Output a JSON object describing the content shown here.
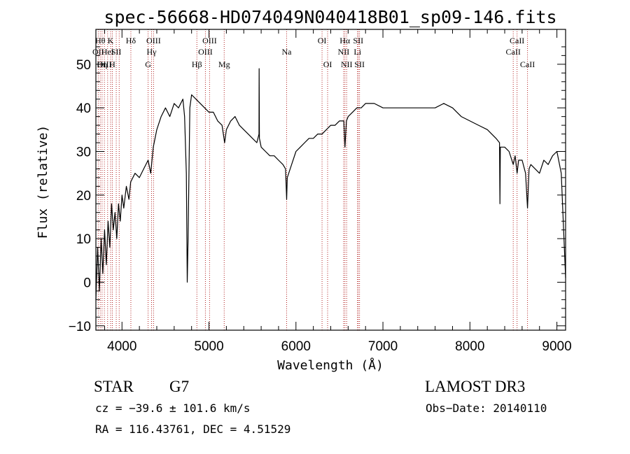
{
  "chart_data": {
    "type": "line",
    "title": "spec-56668-HD074049N040418B01_sp09-146.fits",
    "xlabel": "Wavelength (Å)",
    "ylabel": "Flux (relative)",
    "xlim": [
      3700,
      9100
    ],
    "ylim": [
      -11,
      58
    ],
    "x_ticks": [
      4000,
      5000,
      6000,
      7000,
      8000,
      9000
    ],
    "y_ticks": [
      -10,
      0,
      10,
      20,
      30,
      40,
      50
    ],
    "series": [
      {
        "color": "#000000",
        "points": [
          [
            3700,
            -4
          ],
          [
            3720,
            8
          ],
          [
            3740,
            -2
          ],
          [
            3760,
            10
          ],
          [
            3780,
            2
          ],
          [
            3800,
            12
          ],
          [
            3820,
            4
          ],
          [
            3840,
            14
          ],
          [
            3860,
            8
          ],
          [
            3880,
            18
          ],
          [
            3900,
            12
          ],
          [
            3920,
            16
          ],
          [
            3940,
            10
          ],
          [
            3960,
            18
          ],
          [
            3980,
            14
          ],
          [
            4000,
            20
          ],
          [
            4020,
            17
          ],
          [
            4050,
            22
          ],
          [
            4080,
            19
          ],
          [
            4100,
            23
          ],
          [
            4150,
            25
          ],
          [
            4200,
            24
          ],
          [
            4250,
            26
          ],
          [
            4300,
            28
          ],
          [
            4330,
            25
          ],
          [
            4360,
            31
          ],
          [
            4400,
            35
          ],
          [
            4450,
            38
          ],
          [
            4500,
            40
          ],
          [
            4550,
            38
          ],
          [
            4600,
            41
          ],
          [
            4650,
            40
          ],
          [
            4700,
            42
          ],
          [
            4720,
            38
          ],
          [
            4740,
            25
          ],
          [
            4750,
            0
          ],
          [
            4760,
            10
          ],
          [
            4780,
            40
          ],
          [
            4800,
            43
          ],
          [
            4850,
            42
          ],
          [
            4900,
            41
          ],
          [
            4950,
            40
          ],
          [
            5000,
            39
          ],
          [
            5050,
            39
          ],
          [
            5100,
            37
          ],
          [
            5150,
            36
          ],
          [
            5180,
            32
          ],
          [
            5200,
            35
          ],
          [
            5250,
            37
          ],
          [
            5300,
            38
          ],
          [
            5350,
            36
          ],
          [
            5400,
            35
          ],
          [
            5450,
            34
          ],
          [
            5500,
            33
          ],
          [
            5550,
            32
          ],
          [
            5575,
            34
          ],
          [
            5577,
            49
          ],
          [
            5580,
            33
          ],
          [
            5600,
            31
          ],
          [
            5650,
            30
          ],
          [
            5700,
            29
          ],
          [
            5750,
            29
          ],
          [
            5800,
            28
          ],
          [
            5850,
            27
          ],
          [
            5880,
            26
          ],
          [
            5893,
            19
          ],
          [
            5900,
            24
          ],
          [
            5950,
            27
          ],
          [
            6000,
            30
          ],
          [
            6050,
            31
          ],
          [
            6100,
            32
          ],
          [
            6150,
            33
          ],
          [
            6200,
            33
          ],
          [
            6250,
            34
          ],
          [
            6300,
            34
          ],
          [
            6350,
            35
          ],
          [
            6400,
            36
          ],
          [
            6450,
            36
          ],
          [
            6500,
            37
          ],
          [
            6550,
            37
          ],
          [
            6563,
            31
          ],
          [
            6580,
            37
          ],
          [
            6600,
            38
          ],
          [
            6650,
            39
          ],
          [
            6700,
            40
          ],
          [
            6750,
            40
          ],
          [
            6800,
            41
          ],
          [
            6900,
            41
          ],
          [
            7000,
            40
          ],
          [
            7100,
            40
          ],
          [
            7200,
            40
          ],
          [
            7300,
            40
          ],
          [
            7400,
            40
          ],
          [
            7500,
            40
          ],
          [
            7600,
            40
          ],
          [
            7700,
            41
          ],
          [
            7800,
            40
          ],
          [
            7850,
            39
          ],
          [
            7900,
            38
          ],
          [
            8000,
            37
          ],
          [
            8100,
            36
          ],
          [
            8200,
            35
          ],
          [
            8300,
            33
          ],
          [
            8340,
            32
          ],
          [
            8345,
            18
          ],
          [
            8350,
            31
          ],
          [
            8400,
            31
          ],
          [
            8450,
            30
          ],
          [
            8498,
            27
          ],
          [
            8520,
            29
          ],
          [
            8542,
            25
          ],
          [
            8560,
            28
          ],
          [
            8600,
            28
          ],
          [
            8640,
            25
          ],
          [
            8662,
            17
          ],
          [
            8680,
            26
          ],
          [
            8700,
            27
          ],
          [
            8750,
            26
          ],
          [
            8800,
            25
          ],
          [
            8850,
            28
          ],
          [
            8900,
            27
          ],
          [
            8950,
            29
          ],
          [
            9000,
            30
          ],
          [
            9050,
            25
          ],
          [
            9100,
            1
          ]
        ]
      }
    ],
    "line_markers": [
      {
        "x": 3727,
        "label": "OII",
        "row": 2
      },
      {
        "x": 3750,
        "label": "Hθ",
        "row": 1
      },
      {
        "x": 3771,
        "label": "Hη",
        "row": 3
      },
      {
        "x": 3798,
        "label": "OIII",
        "row": 3
      },
      {
        "x": 3835,
        "label": "HeI",
        "row": 2
      },
      {
        "x": 3869,
        "label": "K",
        "row": 1
      },
      {
        "x": 3889,
        "label": "H",
        "row": 3
      },
      {
        "x": 3934,
        "label": "SII",
        "row": 2
      },
      {
        "x": 3968,
        "label": "",
        "row": 0
      },
      {
        "x": 4102,
        "label": "Hδ",
        "row": 1
      },
      {
        "x": 4300,
        "label": "G",
        "row": 3
      },
      {
        "x": 4340,
        "label": "Hγ",
        "row": 2
      },
      {
        "x": 4363,
        "label": "OIII",
        "row": 1
      },
      {
        "x": 4861,
        "label": "Hβ",
        "row": 3
      },
      {
        "x": 4959,
        "label": "OIII",
        "row": 2
      },
      {
        "x": 5007,
        "label": "OIII",
        "row": 1
      },
      {
        "x": 5175,
        "label": "Mg",
        "row": 3
      },
      {
        "x": 5893,
        "label": "Na",
        "row": 2
      },
      {
        "x": 6300,
        "label": "OI",
        "row": 1
      },
      {
        "x": 6364,
        "label": "OI",
        "row": 3
      },
      {
        "x": 6548,
        "label": "NII",
        "row": 2
      },
      {
        "x": 6563,
        "label": "Hα",
        "row": 1
      },
      {
        "x": 6583,
        "label": "NII",
        "row": 3
      },
      {
        "x": 6708,
        "label": "Li",
        "row": 2
      },
      {
        "x": 6716,
        "label": "SII",
        "row": 1
      },
      {
        "x": 6731,
        "label": "SII",
        "row": 3
      },
      {
        "x": 8498,
        "label": "CaII",
        "row": 2
      },
      {
        "x": 8542,
        "label": "CaII",
        "row": 1
      },
      {
        "x": 8662,
        "label": "CaII",
        "row": 3
      }
    ],
    "grid": false
  },
  "info": {
    "class_label": "STAR",
    "subclass_label": "G7",
    "survey_label": "LAMOST DR3",
    "cz_text": "cz = −39.6 ± 101.6 km/s",
    "obs_date_text": "Obs−Date: 20140110",
    "coords_text": "RA = 116.43761, DEC =   4.51529"
  }
}
